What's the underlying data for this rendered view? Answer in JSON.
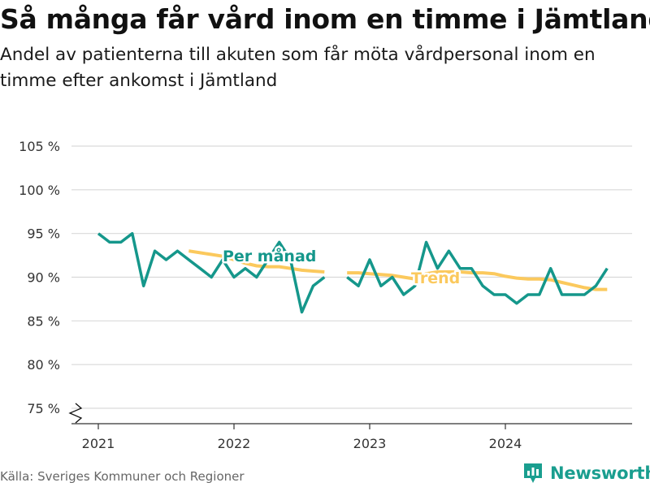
{
  "title": "Så många får vård inom en timme i Jämtland",
  "subtitle": "Andel av patienterna till akuten som får möta vårdpersonal inom en timme efter ankomst i Jämtland",
  "source": "Källa: Sveriges Kommuner och Regioner",
  "brand": "Newsworthy",
  "colors": {
    "monthly": "#15978b",
    "trend": "#fbc95d",
    "grid": "#d9d9d9"
  },
  "chart_data": {
    "type": "line",
    "x_unit": "month",
    "xticks": [
      "2021",
      "2022",
      "2023",
      "2024"
    ],
    "yticks": [
      "75 %",
      "80 %",
      "85 %",
      "90 %",
      "95 %",
      "100 %",
      "105 %"
    ],
    "ylim": [
      75,
      105
    ],
    "axis_break": "y",
    "grid": true,
    "series": [
      {
        "name": "Per månad",
        "segments": [
          {
            "x": [
              "2021-01",
              "2021-02",
              "2021-03",
              "2021-04",
              "2021-05",
              "2021-06",
              "2021-07",
              "2021-08",
              "2021-09",
              "2021-10",
              "2021-11",
              "2021-12",
              "2022-01",
              "2022-02",
              "2022-03",
              "2022-04",
              "2022-05",
              "2022-06",
              "2022-07",
              "2022-08",
              "2022-09"
            ],
            "y": [
              95,
              94,
              94,
              95,
              89,
              93,
              92,
              93,
              92,
              91,
              90,
              92,
              90,
              91,
              90,
              92,
              94,
              92,
              86,
              89,
              90
            ]
          },
          {
            "x": [
              "2022-11",
              "2022-12",
              "2023-01",
              "2023-02",
              "2023-03",
              "2023-04",
              "2023-05",
              "2023-06",
              "2023-07",
              "2023-08",
              "2023-09",
              "2023-10",
              "2023-11",
              "2023-12",
              "2024-01",
              "2024-02",
              "2024-03",
              "2024-04",
              "2024-05",
              "2024-06",
              "2024-07",
              "2024-08",
              "2024-09",
              "2024-10"
            ],
            "y": [
              90,
              89,
              92,
              89,
              90,
              88,
              89,
              94,
              91,
              93,
              91,
              91,
              89,
              88,
              88,
              87,
              88,
              88,
              91,
              88,
              88,
              88,
              89,
              91
            ]
          }
        ]
      },
      {
        "name": "Trend",
        "segments": [
          {
            "x": [
              "2021-09",
              "2021-10",
              "2021-11",
              "2021-12",
              "2022-01",
              "2022-02",
              "2022-03",
              "2022-04",
              "2022-05",
              "2022-06",
              "2022-07",
              "2022-08",
              "2022-09"
            ],
            "y": [
              93.0,
              92.8,
              92.6,
              92.4,
              92.0,
              91.6,
              91.3,
              91.2,
              91.2,
              91.0,
              90.8,
              90.7,
              90.6
            ]
          },
          {
            "x": [
              "2022-11",
              "2022-12",
              "2023-01",
              "2023-02",
              "2023-03",
              "2023-04",
              "2023-05",
              "2023-06",
              "2023-07",
              "2023-08",
              "2023-09",
              "2023-10",
              "2023-11",
              "2023-12",
              "2024-01",
              "2024-02",
              "2024-03",
              "2024-04",
              "2024-05",
              "2024-06",
              "2024-07",
              "2024-08",
              "2024-09",
              "2024-10"
            ],
            "y": [
              90.5,
              90.5,
              90.4,
              90.3,
              90.2,
              90.0,
              89.8,
              90.4,
              90.6,
              90.6,
              90.6,
              90.5,
              90.5,
              90.4,
              90.1,
              89.9,
              89.8,
              89.8,
              89.7,
              89.4,
              89.1,
              88.8,
              88.6,
              88.6
            ]
          }
        ]
      }
    ],
    "annotations": [
      {
        "text": "Per månad",
        "series": "Per månad"
      },
      {
        "text": "Trend",
        "series": "Trend"
      }
    ]
  }
}
